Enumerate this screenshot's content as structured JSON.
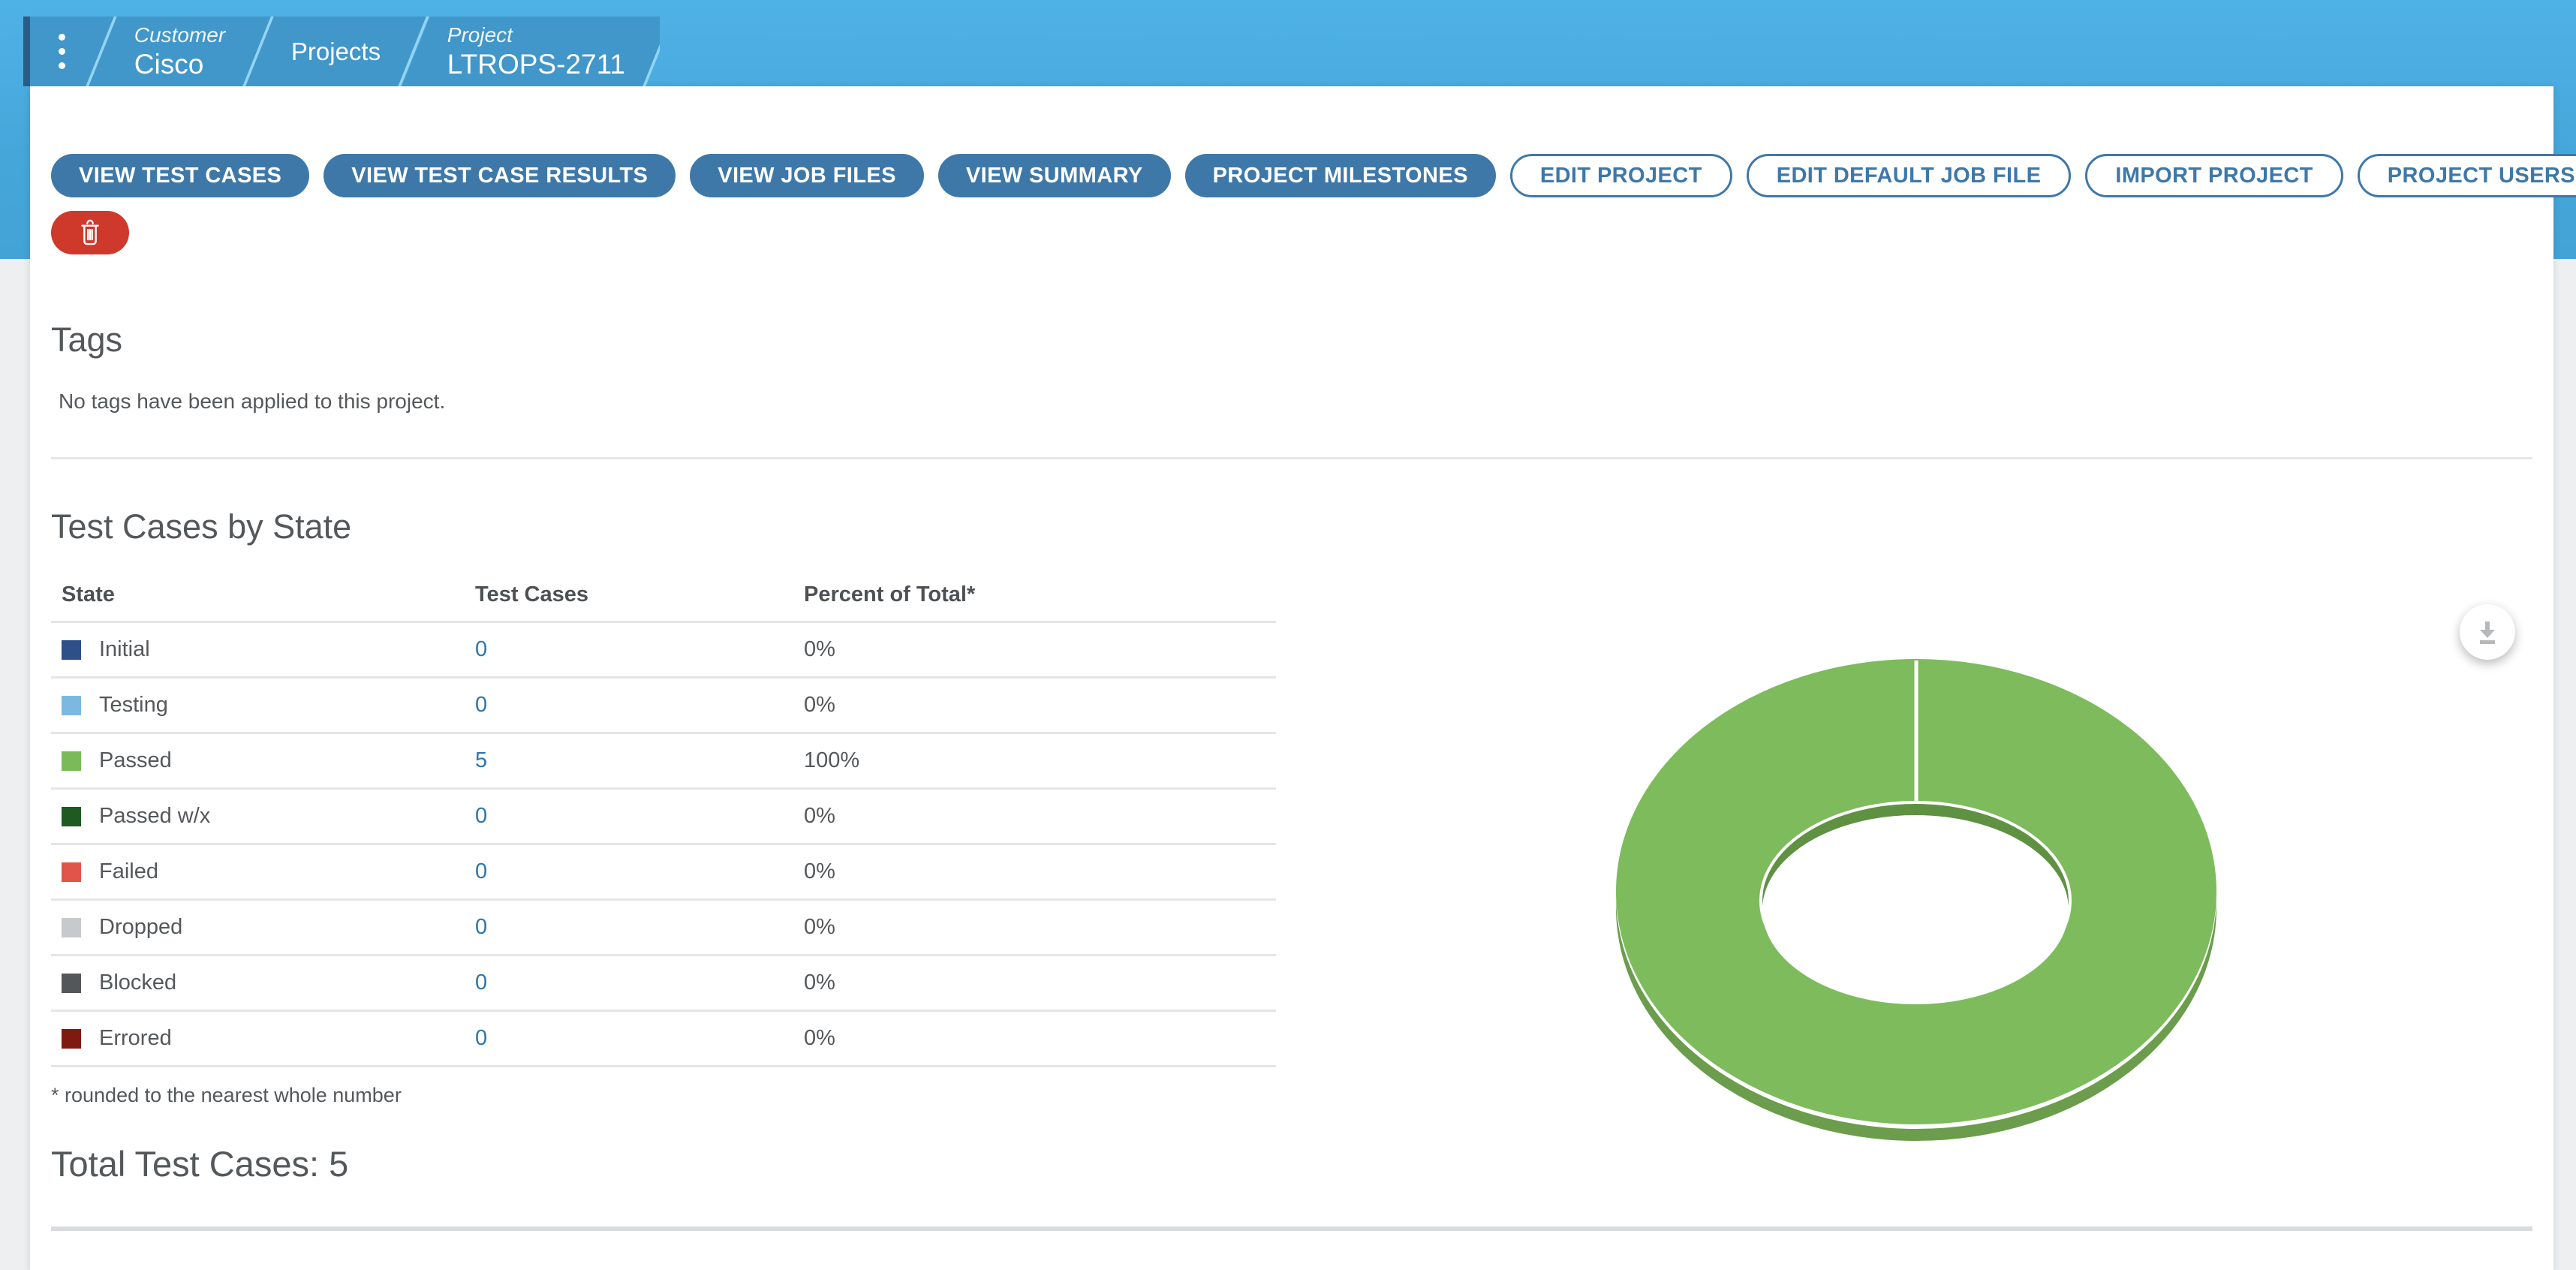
{
  "breadcrumb": {
    "menu_icon": "kebab-menu",
    "crumbs": [
      {
        "category": "Customer",
        "label": "Cisco"
      },
      {
        "category": "",
        "label": "Projects"
      },
      {
        "category": "Project",
        "label": "LTROPS-2711"
      }
    ]
  },
  "toolbar": {
    "primary": [
      "VIEW TEST CASES",
      "VIEW TEST CASE RESULTS",
      "VIEW JOB FILES",
      "VIEW SUMMARY",
      "PROJECT MILESTONES"
    ],
    "secondary": [
      "EDIT PROJECT",
      "EDIT DEFAULT JOB FILE",
      "IMPORT PROJECT",
      "PROJECT USERS"
    ],
    "filter_icon": "funnel",
    "delete_icon": "trash"
  },
  "tags_section": {
    "title": "Tags",
    "empty_message": "No tags have been applied to this project."
  },
  "test_cases_section": {
    "title": "Test Cases by State",
    "columns": [
      "State",
      "Test Cases",
      "Percent of Total*"
    ],
    "rows": [
      {
        "state": "Initial",
        "color": "#2e4f87",
        "count": "0",
        "percent": "0%"
      },
      {
        "state": "Testing",
        "color": "#7cb9e1",
        "count": "0",
        "percent": "0%"
      },
      {
        "state": "Passed",
        "color": "#7cba59",
        "count": "5",
        "percent": "100%"
      },
      {
        "state": "Passed w/x",
        "color": "#1f5a21",
        "count": "0",
        "percent": "0%"
      },
      {
        "state": "Failed",
        "color": "#e0544a",
        "count": "0",
        "percent": "0%"
      },
      {
        "state": "Dropped",
        "color": "#c7c9cb",
        "count": "0",
        "percent": "0%"
      },
      {
        "state": "Blocked",
        "color": "#54575a",
        "count": "0",
        "percent": "0%"
      },
      {
        "state": "Errored",
        "color": "#7e1a10",
        "count": "0",
        "percent": "0%"
      }
    ],
    "footnote": "* rounded to the nearest whole number",
    "total_label": "Total Test Cases: 5"
  },
  "chart_data": {
    "type": "pie",
    "donut": true,
    "effect_3d": true,
    "title": "Test Cases by State",
    "labels": [
      "Initial",
      "Testing",
      "Passed",
      "Passed w/x",
      "Failed",
      "Dropped",
      "Blocked",
      "Errored"
    ],
    "values": [
      0,
      0,
      5,
      0,
      0,
      0,
      0,
      0
    ],
    "percentages": [
      0,
      0,
      100,
      0,
      0,
      0,
      0,
      0
    ],
    "total": 5,
    "visible_slice": {
      "label": "Passed",
      "value": 5,
      "percent": 100
    },
    "slice_color": "#7dbb5c",
    "depth_color": "#6b9d4c",
    "inner_wall_color": "#5f9143",
    "legend_position": "none"
  },
  "colors": {
    "band_blue": "#48abdf",
    "ribbon_blue": "#4196ca",
    "ribbon_accent": "#2b5c85",
    "slash": "#92d4f2",
    "button_blue": "#3e78a9",
    "delete_red": "#ce392b",
    "link_blue": "#2d76ae",
    "page_bg": "#edeff1"
  }
}
